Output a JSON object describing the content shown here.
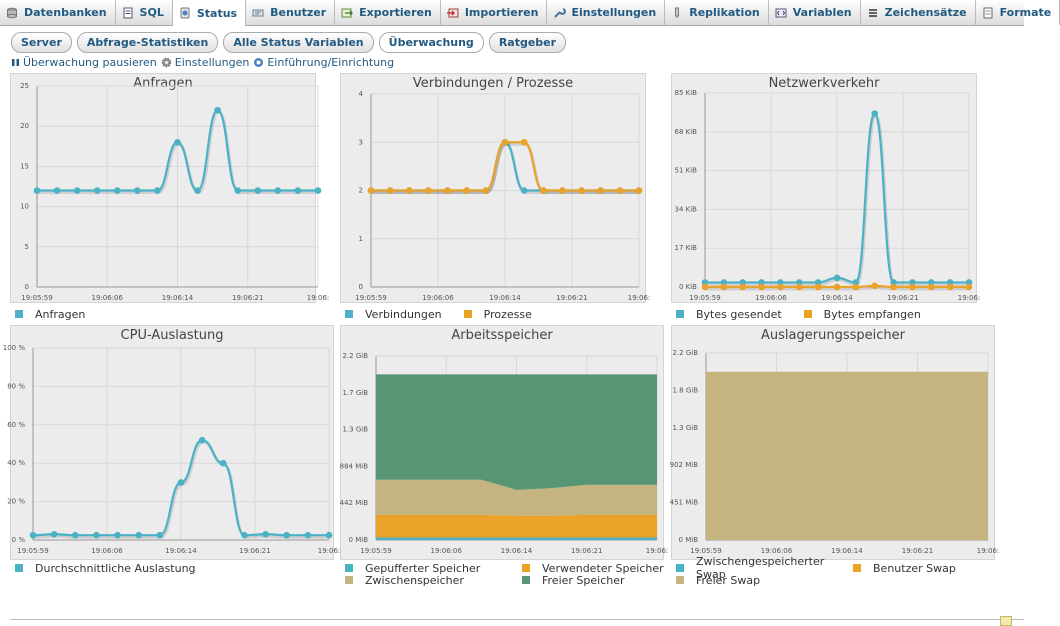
{
  "tabs": [
    {
      "label": "Datenbanken",
      "icon": "database-icon",
      "active": false
    },
    {
      "label": "SQL",
      "icon": "sql-icon",
      "active": false
    },
    {
      "label": "Status",
      "icon": "status-icon",
      "active": true
    },
    {
      "label": "Benutzer",
      "icon": "users-icon",
      "active": false
    },
    {
      "label": "Exportieren",
      "icon": "export-icon",
      "active": false
    },
    {
      "label": "Importieren",
      "icon": "import-icon",
      "active": false
    },
    {
      "label": "Einstellungen",
      "icon": "wrench-icon",
      "active": false
    },
    {
      "label": "Replikation",
      "icon": "replication-icon",
      "active": false
    },
    {
      "label": "Variablen",
      "icon": "variables-icon",
      "active": false
    },
    {
      "label": "Zeichensätze",
      "icon": "charset-icon",
      "active": false
    },
    {
      "label": "Formate",
      "icon": "formats-icon",
      "active": false
    }
  ],
  "subtabs": [
    {
      "label": "Server",
      "active": false
    },
    {
      "label": "Abfrage-Statistiken",
      "active": false
    },
    {
      "label": "Alle Status Variablen",
      "active": false
    },
    {
      "label": "Überwachung",
      "active": true
    },
    {
      "label": "Ratgeber",
      "active": false
    }
  ],
  "actions": {
    "pause": "Überwachung pausieren",
    "settings": "Einstellungen",
    "intro": "Einführung/Einrichtung"
  },
  "colors": {
    "teal": "#4bb2c5",
    "orange": "#eaa228",
    "tan": "#c5b47f",
    "green": "#579575",
    "link": "#235a81"
  },
  "chart_data": [
    {
      "type": "line",
      "title": "Anfragen",
      "x": [
        "19:05:59",
        "19:06:01",
        "19:06:03",
        "19:06:05",
        "19:06:07",
        "19:06:09",
        "19:06:11",
        "19:06:13",
        "19:06:15",
        "19:06:17",
        "19:06:19",
        "19:06:21",
        "19:06:23",
        "19:06:25",
        "19:06:27"
      ],
      "xticks": [
        "19:05:59",
        "19:06:06",
        "19:06:14",
        "19:06:21",
        "19:06:"
      ],
      "yticks": [
        "0",
        "5",
        "10",
        "15",
        "20",
        "25"
      ],
      "ylim": [
        0,
        25
      ],
      "series": [
        {
          "name": "Anfragen",
          "color": "#4bb2c5",
          "values": [
            12,
            12,
            12,
            12,
            12,
            12,
            12,
            18,
            12,
            22,
            12,
            12,
            12,
            12,
            12
          ]
        }
      ]
    },
    {
      "type": "line",
      "title": "Verbindungen / Prozesse",
      "x": [
        "19:05:59",
        "19:06:01",
        "19:06:03",
        "19:06:05",
        "19:06:07",
        "19:06:09",
        "19:06:11",
        "19:06:13",
        "19:06:15",
        "19:06:17",
        "19:06:19",
        "19:06:21",
        "19:06:23",
        "19:06:25",
        "19:06:27"
      ],
      "xticks": [
        "19:05:59",
        "19:06:06",
        "19:06:14",
        "19:06:21",
        "19:06:"
      ],
      "yticks": [
        "0",
        "1",
        "2",
        "3",
        "4"
      ],
      "ylim": [
        0,
        4
      ],
      "series": [
        {
          "name": "Verbindungen",
          "color": "#4bb2c5",
          "values": [
            2,
            2,
            2,
            2,
            2,
            2,
            2,
            3,
            2,
            2,
            2,
            2,
            2,
            2,
            2
          ]
        },
        {
          "name": "Prozesse",
          "color": "#eaa228",
          "values": [
            2,
            2,
            2,
            2,
            2,
            2,
            2,
            3,
            3,
            2,
            2,
            2,
            2,
            2,
            2
          ]
        }
      ]
    },
    {
      "type": "line",
      "title": "Netzwerkverkehr",
      "x": [
        "19:05:59",
        "19:06:01",
        "19:06:03",
        "19:06:05",
        "19:06:07",
        "19:06:09",
        "19:06:11",
        "19:06:13",
        "19:06:15",
        "19:06:17",
        "19:06:19",
        "19:06:21",
        "19:06:23",
        "19:06:25",
        "19:06:27"
      ],
      "xticks": [
        "19:05:59",
        "19:06:06",
        "19:06:14",
        "19:06:21",
        "19:06:"
      ],
      "yticks": [
        "0 KiB",
        "17 KiB",
        "34 KiB",
        "51 KiB",
        "68 KiB",
        "85 KiB"
      ],
      "ylim": [
        0,
        85
      ],
      "series": [
        {
          "name": "Bytes gesendet",
          "color": "#4bb2c5",
          "values": [
            2,
            2,
            2,
            2,
            2,
            2,
            2,
            4,
            2,
            76,
            2,
            2,
            2,
            2,
            2
          ]
        },
        {
          "name": "Bytes empfangen",
          "color": "#eaa228",
          "values": [
            0,
            0,
            0,
            0,
            0,
            0,
            0,
            0,
            0,
            0.5,
            0,
            0,
            0,
            0,
            0
          ]
        }
      ]
    },
    {
      "type": "line",
      "title": "CPU-Auslastung",
      "x": [
        "19:05:59",
        "19:06:01",
        "19:06:03",
        "19:06:05",
        "19:06:07",
        "19:06:09",
        "19:06:11",
        "19:06:13",
        "19:06:15",
        "19:06:17",
        "19:06:19",
        "19:06:21",
        "19:06:23",
        "19:06:25",
        "19:06:27"
      ],
      "xticks": [
        "19:05:59",
        "19:06:06",
        "19:06:14",
        "19:06:21",
        "19:06:"
      ],
      "yticks": [
        "0 %",
        "20 %",
        "40 %",
        "60 %",
        "80 %",
        "100 %"
      ],
      "ylim": [
        0,
        100
      ],
      "series": [
        {
          "name": "Durchschnittliche Auslastung",
          "color": "#4bb2c5",
          "values": [
            2.5,
            3,
            2.5,
            2.5,
            2.5,
            2.5,
            2.5,
            30,
            52,
            40,
            2.5,
            3,
            2.5,
            2.5,
            2.5
          ]
        }
      ]
    },
    {
      "type": "area",
      "title": "Arbeitsspeicher",
      "x": [
        "19:05:59",
        "19:06:03",
        "19:06:07",
        "19:06:11",
        "19:06:13",
        "19:06:15",
        "19:06:19",
        "19:06:23",
        "19:06:27"
      ],
      "xticks": [
        "19:05:59",
        "19:06:06",
        "19:06:14",
        "19:06:21",
        "19:06:"
      ],
      "yticks": [
        "0 MiB",
        "442 MiB",
        "884 MiB",
        "1.3 GiB",
        "1.7 GiB",
        "2.2 GiB"
      ],
      "ylim": [
        0,
        2.2
      ],
      "series": [
        {
          "name": "Gepufferter Speicher",
          "color": "#4bb2c5",
          "values": [
            0.03,
            0.03,
            0.03,
            0.03,
            0.03,
            0.03,
            0.03,
            0.03,
            0.03
          ]
        },
        {
          "name": "Verwendeter Speicher",
          "color": "#eaa228",
          "values": [
            0.27,
            0.27,
            0.27,
            0.27,
            0.26,
            0.26,
            0.27,
            0.27,
            0.27
          ]
        },
        {
          "name": "Zwischenspeicher",
          "color": "#c5b47f",
          "values": [
            0.42,
            0.42,
            0.42,
            0.42,
            0.31,
            0.33,
            0.36,
            0.36,
            0.36
          ]
        },
        {
          "name": "Freier Speicher",
          "color": "#579575",
          "values": [
            1.26,
            1.26,
            1.26,
            1.26,
            1.38,
            1.36,
            1.32,
            1.32,
            1.32
          ]
        }
      ]
    },
    {
      "type": "area",
      "title": "Auslagerungsspeicher",
      "x": [
        "19:05:59",
        "19:06:06",
        "19:06:14",
        "19:06:21",
        "19:06:27"
      ],
      "xticks": [
        "19:05:59",
        "19:06:06",
        "19:06:14",
        "19:06:21",
        "19:06:"
      ],
      "yticks": [
        "0 MiB",
        "451 MiB",
        "902 MiB",
        "1.3 GiB",
        "1.8 GiB",
        "2.2 GiB"
      ],
      "ylim": [
        0,
        2.2
      ],
      "series": [
        {
          "name": "Zwischengespeicherter Swap",
          "color": "#4bb2c5",
          "values": [
            0,
            0,
            0,
            0,
            0
          ]
        },
        {
          "name": "Benutzer Swap",
          "color": "#eaa228",
          "values": [
            0,
            0,
            0,
            0,
            0
          ]
        },
        {
          "name": "Freier Swap",
          "color": "#c5b47f",
          "values": [
            1.98,
            1.98,
            1.98,
            1.98,
            1.98
          ]
        }
      ]
    }
  ]
}
